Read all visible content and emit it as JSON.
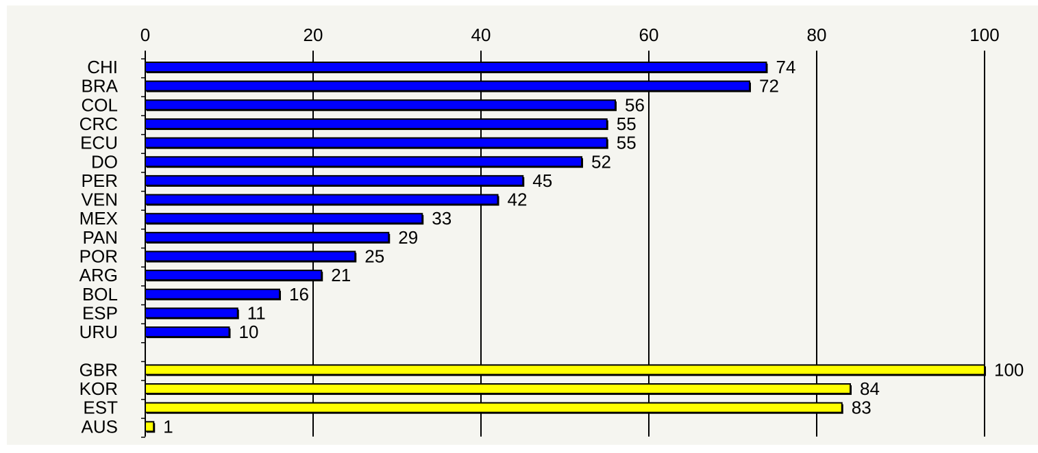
{
  "chart_data": {
    "type": "bar",
    "orientation": "horizontal",
    "categories": [
      "CHI",
      "BRA",
      "COL",
      "CRC",
      "ECU",
      "DO",
      "PER",
      "VEN",
      "MEX",
      "PAN",
      "POR",
      "ARG",
      "BOL",
      "ESP",
      "URU",
      "",
      "GBR",
      "KOR",
      "EST",
      "AUS"
    ],
    "values": [
      74,
      72,
      56,
      55,
      55,
      52,
      45,
      42,
      33,
      29,
      25,
      21,
      16,
      11,
      10,
      null,
      100,
      84,
      83,
      1
    ],
    "data_labels": [
      "74",
      "72",
      "56",
      "55",
      "55",
      "52",
      "45",
      "42",
      "33",
      "29",
      "25",
      "21",
      "16",
      "11",
      "10",
      "",
      "100",
      "84",
      "83",
      "1"
    ],
    "bar_colors": [
      "#0000ff",
      "#0000ff",
      "#0000ff",
      "#0000ff",
      "#0000ff",
      "#0000ff",
      "#0000ff",
      "#0000ff",
      "#0000ff",
      "#0000ff",
      "#0000ff",
      "#0000ff",
      "#0000ff",
      "#0000ff",
      "#0000ff",
      "",
      "#ffff00",
      "#ffff00",
      "#ffff00",
      "#ffff00"
    ],
    "x_ticks": [
      "0",
      "20",
      "40",
      "60",
      "80",
      "100"
    ],
    "xlim": [
      0,
      100
    ],
    "x_axis_position": "top",
    "grid": "vertical",
    "title": "",
    "xlabel": "",
    "ylabel": ""
  },
  "colors": {
    "background": "#f5f5f0",
    "page": "#ffffff",
    "gridline": "#000000",
    "bar_outline": "#000000"
  }
}
